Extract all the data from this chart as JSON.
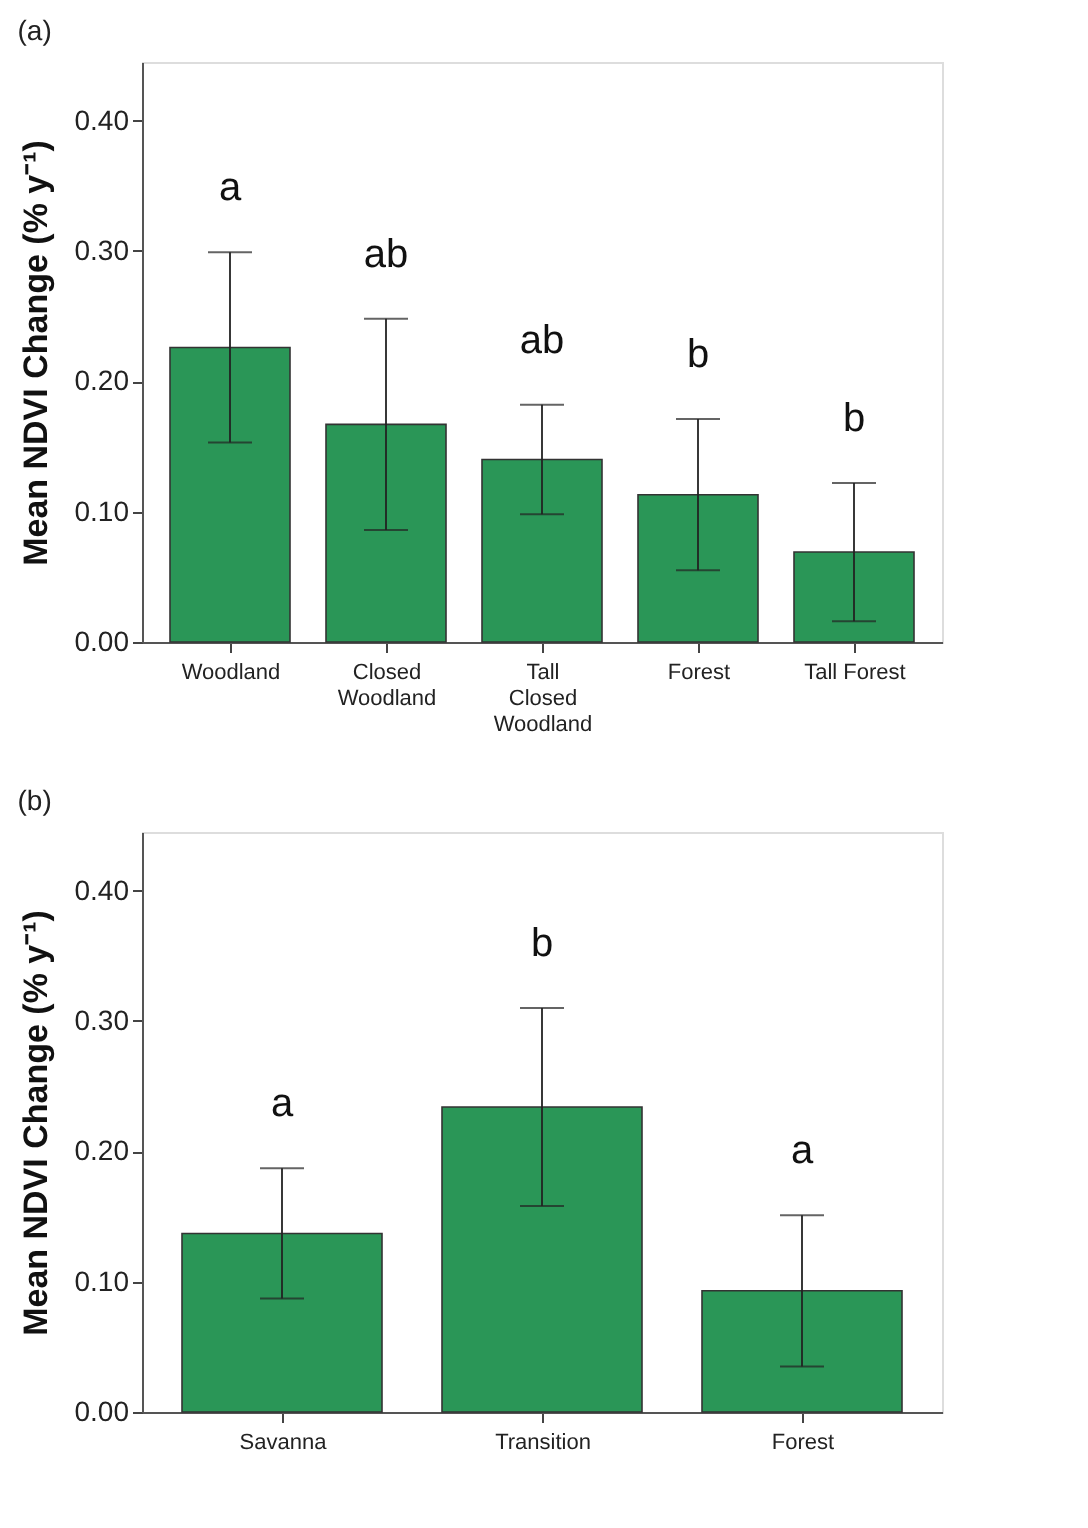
{
  "chart_data": [
    {
      "type": "bar",
      "title": "(a)",
      "ylabel": "Mean NDVI Change (% y⁻¹)",
      "categories": [
        "Woodland",
        "Closed\nWoodland",
        "Tall\nClosed\nWoodland",
        "Forest",
        "Tall Forest"
      ],
      "values": [
        0.226,
        0.167,
        0.14,
        0.113,
        0.069
      ],
      "errors": [
        0.073,
        0.081,
        0.042,
        0.058,
        0.053
      ],
      "color": "#2a9657",
      "ylim": [
        0,
        0.445
      ],
      "yticks": [
        {
          "value": 0,
          "label": "0.00"
        },
        {
          "value": 0.1,
          "label": "0.10"
        },
        {
          "value": 0.2,
          "label": "0.20"
        },
        {
          "value": 0.3,
          "label": "0.30"
        },
        {
          "value": 0.4,
          "label": "0.40"
        }
      ],
      "grid": false,
      "annotations": [
        "a",
        "ab",
        "ab",
        "b",
        "b"
      ]
    },
    {
      "type": "bar",
      "title": "(b)",
      "ylabel": "Mean NDVI Change (% y⁻¹)",
      "categories": [
        "Savanna",
        "Transition",
        "Forest"
      ],
      "values": [
        0.137,
        0.234,
        0.093
      ],
      "errors": [
        0.05,
        0.076,
        0.058
      ],
      "color": "#2a9657",
      "ylim": [
        0,
        0.445
      ],
      "yticks": [
        {
          "value": 0,
          "label": "0.00"
        },
        {
          "value": 0.1,
          "label": "0.10"
        },
        {
          "value": 0.2,
          "label": "0.20"
        },
        {
          "value": 0.3,
          "label": "0.30"
        },
        {
          "value": 0.4,
          "label": "0.40"
        }
      ],
      "grid": false,
      "annotations": [
        "a",
        "b",
        "a"
      ]
    }
  ]
}
